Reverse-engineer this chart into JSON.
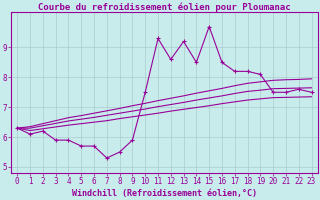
{
  "title": "Courbe du refroidissement éolien pour Ploumanac",
  "xlabel": "Windchill (Refroidissement éolien,°C)",
  "bg_color": "#c8ecec",
  "line_color": "#990099",
  "grid_color": "#aacccc",
  "x_data": [
    0,
    1,
    2,
    3,
    4,
    5,
    6,
    7,
    8,
    9,
    10,
    11,
    12,
    13,
    14,
    15,
    16,
    17,
    18,
    19,
    20,
    21,
    22,
    23
  ],
  "y_main": [
    6.3,
    6.1,
    6.2,
    5.9,
    5.9,
    5.7,
    5.7,
    5.3,
    5.5,
    5.9,
    7.5,
    9.3,
    8.6,
    9.2,
    8.5,
    9.7,
    8.5,
    8.2,
    8.2,
    8.1,
    7.5,
    7.5,
    7.6,
    7.5
  ],
  "y_upper": [
    6.3,
    6.35,
    6.45,
    6.55,
    6.65,
    6.72,
    6.8,
    6.88,
    6.96,
    7.05,
    7.13,
    7.22,
    7.3,
    7.38,
    7.47,
    7.55,
    7.63,
    7.72,
    7.8,
    7.85,
    7.9,
    7.92,
    7.93,
    7.95
  ],
  "y_mid": [
    6.3,
    6.3,
    6.38,
    6.46,
    6.54,
    6.6,
    6.66,
    6.73,
    6.8,
    6.87,
    6.94,
    7.02,
    7.09,
    7.16,
    7.24,
    7.31,
    7.38,
    7.46,
    7.53,
    7.57,
    7.62,
    7.63,
    7.64,
    7.65
  ],
  "y_lower": [
    6.3,
    6.22,
    6.28,
    6.34,
    6.4,
    6.45,
    6.5,
    6.55,
    6.62,
    6.68,
    6.74,
    6.8,
    6.87,
    6.93,
    6.99,
    7.05,
    7.12,
    7.18,
    7.24,
    7.28,
    7.32,
    7.33,
    7.34,
    7.35
  ],
  "ylim": [
    4.8,
    10.2
  ],
  "xlim": [
    -0.5,
    23.5
  ],
  "yticks": [
    5,
    6,
    7,
    8,
    9
  ],
  "xticks": [
    0,
    1,
    2,
    3,
    4,
    5,
    6,
    7,
    8,
    9,
    10,
    11,
    12,
    13,
    14,
    15,
    16,
    17,
    18,
    19,
    20,
    21,
    22,
    23
  ],
  "font_size": 5.5,
  "xlabel_font_size": 6.0,
  "title_font_size": 6.5,
  "lw": 0.8,
  "marker_size": 2.5
}
